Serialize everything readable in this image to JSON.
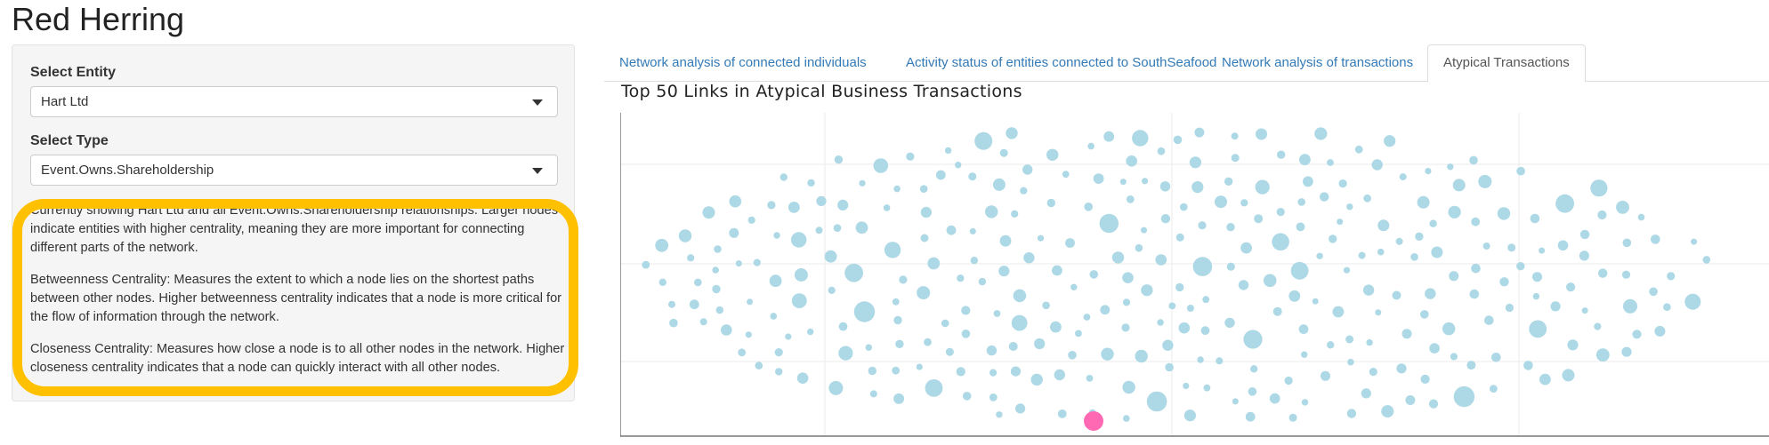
{
  "app": {
    "title": "Red Herring"
  },
  "sidebar": {
    "entity_label": "Select Entity",
    "entity_value": "Hart Ltd",
    "type_label": "Select Type",
    "type_value": "Event.Owns.Shareholdership",
    "description": [
      "Currently showing Hart Ltd and all Event.Owns.Shareholdership relationships. Larger nodes indicate entities with higher centrality, meaning they are more important for connecting different parts of the network.",
      "Betweenness Centrality: Measures the extent to which a node lies on the shortest paths between other nodes. Higher betweenness centrality indicates that a node is more critical for the flow of information through the network.",
      "Closeness Centrality: Measures how close a node is to all other nodes in the network. Higher closeness centrality indicates that a node can quickly interact with all other nodes."
    ],
    "highlight_color": "#ffc000"
  },
  "tabs": [
    {
      "label": "Network analysis of connected individuals",
      "active": false
    },
    {
      "label": "Activity status of entities connected to SouthSeafood",
      "active": false
    },
    {
      "label": "Network analysis of transactions",
      "active": false
    },
    {
      "label": "Atypical Transactions",
      "active": true
    }
  ],
  "chart": {
    "title": "Top 50 Links in Atypical Business Transactions",
    "node_color": "#add8e6",
    "highlight_node_color": "#ff69b4",
    "node_count": 320,
    "highlighted_entity": "Hart Ltd"
  }
}
